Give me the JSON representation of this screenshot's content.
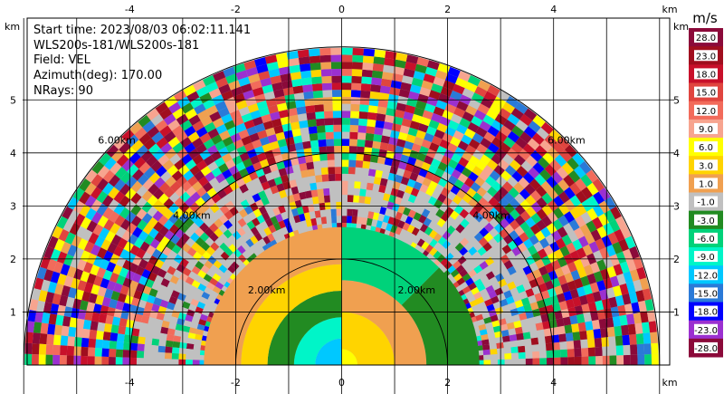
{
  "chart_data": {
    "type": "heatmap",
    "title": "",
    "info_lines": [
      "Start time: 2023/08/03 06:02:11.141",
      "WLS200s-181/WLS200s-181",
      "Field: VEL",
      "Azimuth(deg): 170.00",
      "NRays: 90"
    ],
    "xlabel": "km",
    "ylabel": "km",
    "xlim": [
      -6.1,
      6.1
    ],
    "ylim": [
      0,
      5.8
    ],
    "x_ticks": [
      -4,
      -2,
      0,
      2,
      4
    ],
    "y_ticks": [
      1,
      2,
      3,
      4,
      5
    ],
    "grid": true,
    "max_range_km": 6.0,
    "range_rings_km": [
      2.0,
      4.0,
      6.0
    ],
    "range_ring_labels": [
      "2.00km",
      "4.00km",
      "6.00km"
    ],
    "colorbar": {
      "unit": "m/s",
      "labels": [
        "28.0",
        "23.0",
        "18.0",
        "15.0",
        "12.0",
        "9.0",
        "6.0",
        "3.0",
        "1.0",
        "-1.0",
        "-3.0",
        "-6.0",
        "-9.0",
        "-12.0",
        "-15.0",
        "-18.0",
        "-23.0",
        "-28.0"
      ],
      "colors": [
        "#8b0a3a",
        "#a00e1e",
        "#c8102a",
        "#e0453f",
        "#f26b5b",
        "#f7a48f",
        "#ffff00",
        "#ffd400",
        "#f0a050",
        "#c0c0c0",
        "#228b22",
        "#00d27a",
        "#00f5c8",
        "#00c8ff",
        "#2a7ad8",
        "#0000ff",
        "#9b30d0",
        "#8b0a3a"
      ]
    },
    "sectors": [
      {
        "az_from": 0,
        "az_to": 90,
        "r_from": 0.0,
        "r_to": 0.3,
        "velocity": 6.0
      },
      {
        "az_from": 0,
        "az_to": 90,
        "r_from": 0.3,
        "r_to": 1.0,
        "velocity": 3.0
      },
      {
        "az_from": 0,
        "az_to": 90,
        "r_from": 1.0,
        "r_to": 1.6,
        "velocity": 1.0
      },
      {
        "az_from": 0,
        "az_to": 45,
        "r_from": 1.6,
        "r_to": 2.6,
        "velocity": -3.0
      },
      {
        "az_from": 45,
        "az_to": 90,
        "r_from": 1.6,
        "r_to": 2.6,
        "velocity": -6.0
      },
      {
        "az_from": 90,
        "az_to": 180,
        "r_from": 0.0,
        "r_to": 0.5,
        "velocity": -12.0
      },
      {
        "az_from": 90,
        "az_to": 180,
        "r_from": 0.5,
        "r_to": 0.9,
        "velocity": -9.0
      },
      {
        "az_from": 90,
        "az_to": 180,
        "r_from": 0.9,
        "r_to": 1.4,
        "velocity": -3.0
      },
      {
        "az_from": 90,
        "az_to": 180,
        "r_from": 1.4,
        "r_to": 1.9,
        "velocity": 3.0
      },
      {
        "az_from": 90,
        "az_to": 180,
        "r_from": 1.9,
        "r_to": 2.6,
        "velocity": 1.0
      }
    ]
  }
}
